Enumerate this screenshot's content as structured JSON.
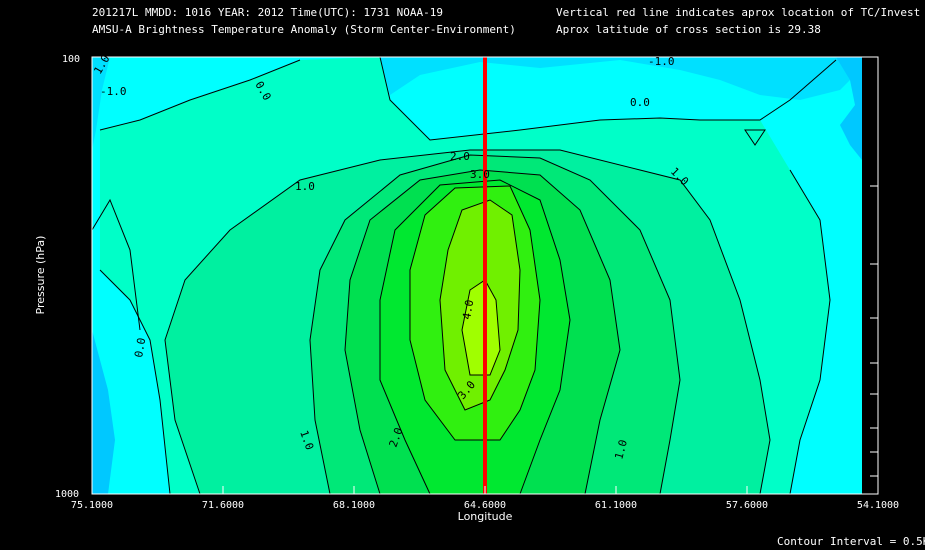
{
  "header": {
    "line1_left": "201217L  MMDD: 1016 YEAR: 2012 Time(UTC): 1731 NOAA-19",
    "line2_left": "AMSU-A Brightness Temperature Anomaly (Storm Center-Environment)",
    "line1_right": "Vertical red line indicates aprox location of TC/Invest",
    "line2_right": "Aprox latitude of cross section is 29.38"
  },
  "footer": {
    "contour_interval": "Contour Interval = 0.5K"
  },
  "chart_data": {
    "type": "heatmap",
    "subtype": "filled-contour cross section",
    "xlabel": "Longitude",
    "ylabel": "Pressure (hPa)",
    "x_ticks": [
      "75.1000",
      "71.6000",
      "68.1000",
      "64.6000",
      "61.1000",
      "57.6000",
      "54.1000"
    ],
    "x_tick_values": [
      75.1,
      71.6,
      68.1,
      64.6,
      61.1,
      57.6,
      54.1
    ],
    "xlim": [
      75.1,
      54.1
    ],
    "y_ticks": [
      "100",
      "1000"
    ],
    "ylim": [
      100,
      1000
    ],
    "y_scale": "log",
    "storm_longitude": 64.6,
    "storm_line_color": "#ff0000",
    "contour_interval_K": 0.5,
    "contour_labels": [
      "-1.0",
      "0.0",
      "0.0",
      "1.0",
      "1.0",
      "1.0",
      "1.0",
      "2.0",
      "2.0",
      "3.0",
      "3.0",
      "4.0",
      "0.0",
      "1.0",
      "-1.0"
    ],
    "colors": {
      "lt_-1": "#00c8ff",
      "-1_to_0": "#00e0ff",
      "0_to_0.5": "#00ffff",
      "0.5_to_1": "#00ffc8",
      "1_to_1.5": "#00f0a0",
      "1.5_to_2": "#00e878",
      "2_to_2.5": "#00e050",
      "2.5_to_3": "#00e830",
      "3_to_3.5": "#30f010",
      "3.5_to_4": "#70f000",
      "gt_4": "#a0ff00"
    }
  }
}
